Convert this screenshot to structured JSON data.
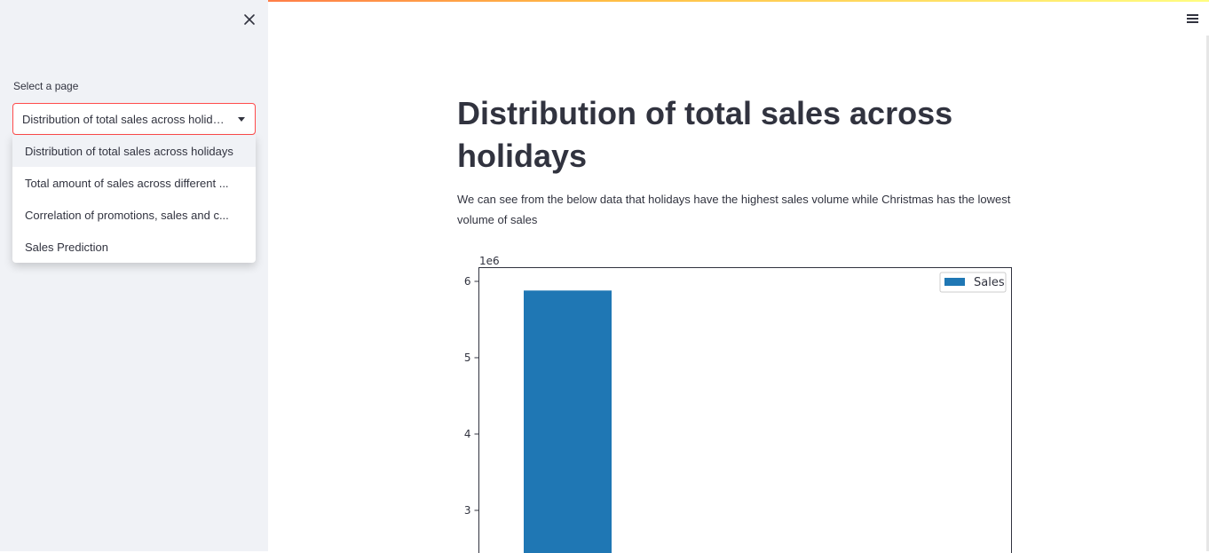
{
  "sidebar": {
    "select_label": "Select a page",
    "selected_value": "Distribution of total sales across holidays",
    "options": [
      "Distribution of total sales across holidays",
      "Total amount of sales across different ...",
      "Correlation of promotions, sales and c...",
      "Sales Prediction"
    ]
  },
  "icons": {
    "close": "close-icon",
    "menu": "hamburger-menu-icon",
    "caret": "chevron-down-icon"
  },
  "main": {
    "title": "Distribution of total sales across holidays",
    "description": "We can see from the below data that holidays have the highest sales volume while Christmas has the lowest volume of sales"
  },
  "chart_data": {
    "type": "bar",
    "scale_label": "1e6",
    "yticks": [
      3,
      4,
      5,
      6
    ],
    "ylim_visible": [
      2.5,
      6.18
    ],
    "legend": "Sales",
    "legend_position": "top-right",
    "series": [
      {
        "name": "Sales",
        "values": [
          5.88
        ],
        "color": "#1f77b4"
      }
    ]
  }
}
